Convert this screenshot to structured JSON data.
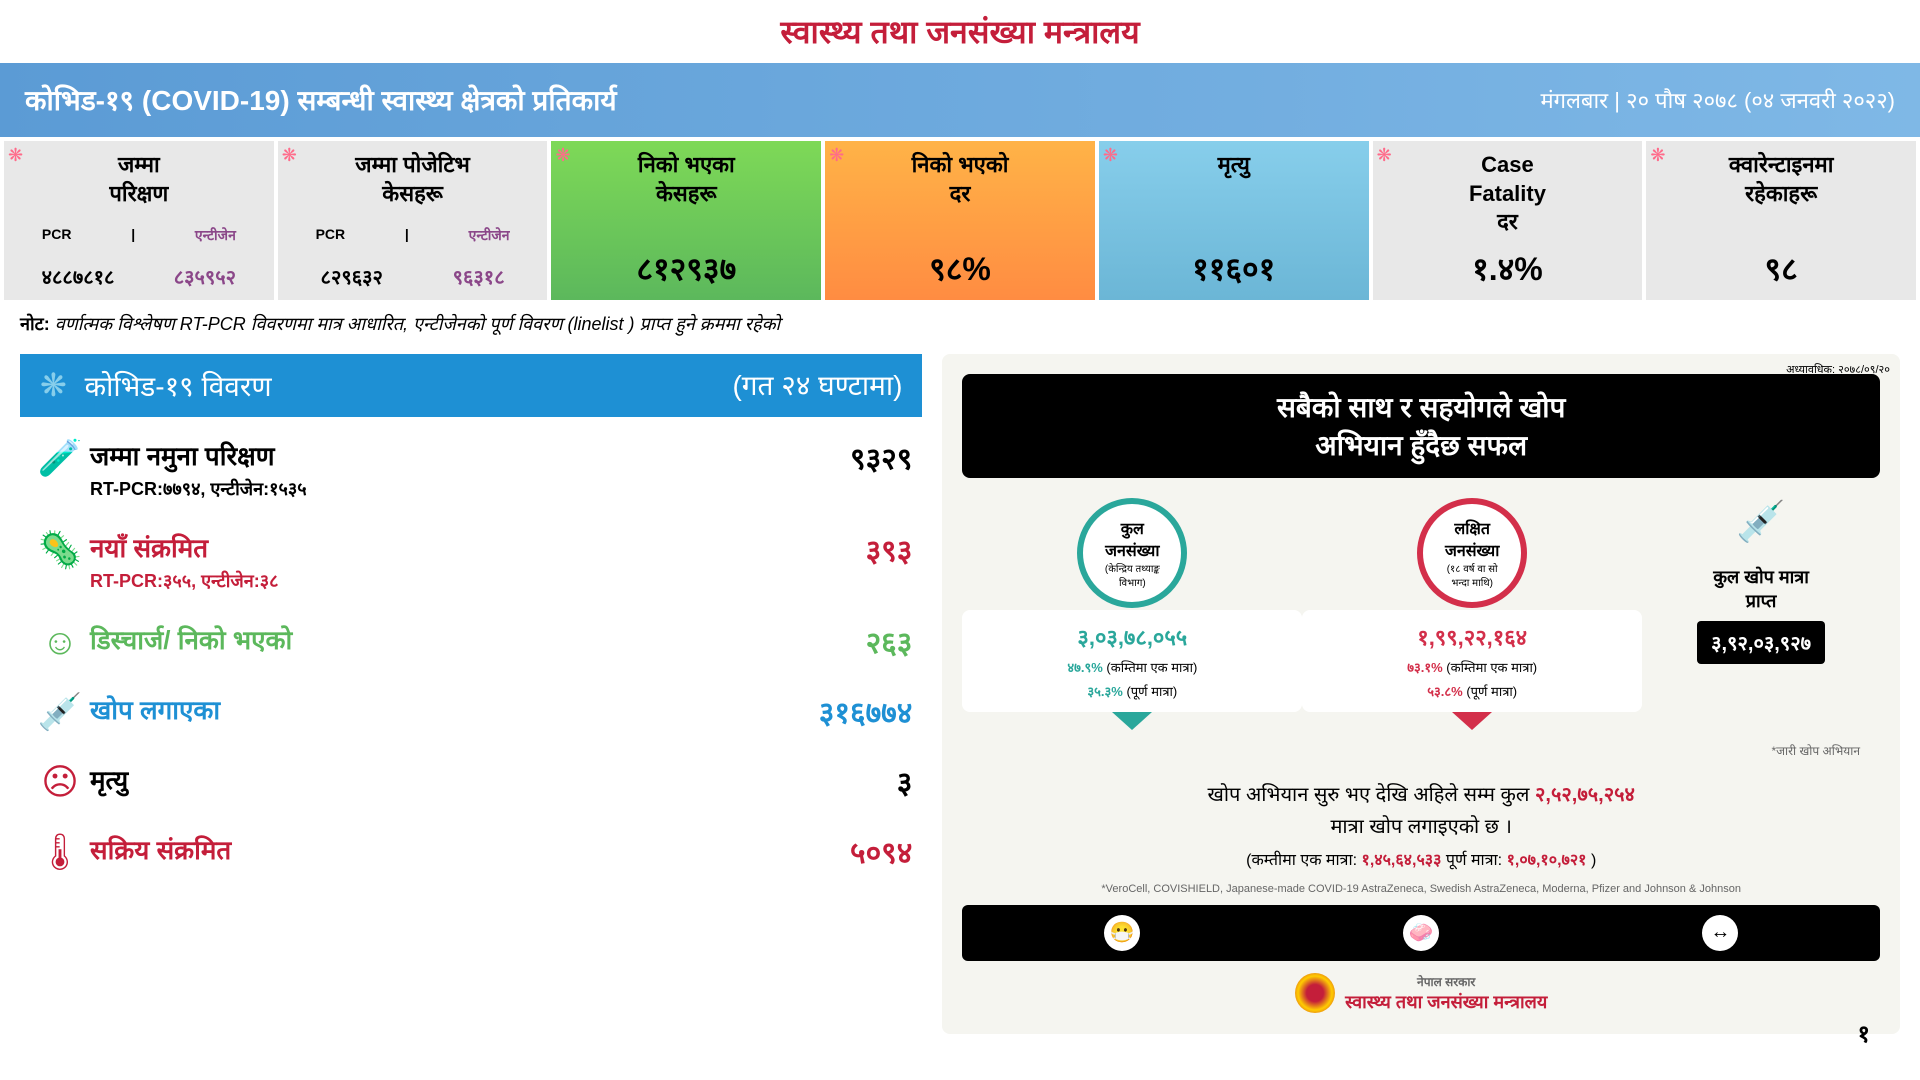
{
  "page": {
    "title": "स्वास्थ्य तथा जनसंख्या मन्त्रालय",
    "pageNumber": "१"
  },
  "header": {
    "left": "कोभिड-१९ (COVID-19) सम्बन्धी स्वास्थ्य क्षेत्रको प्रतिकार्य",
    "right": "मंगलबार | २० पौष २०७८ (०४ जनवरी २०२२)"
  },
  "stats": [
    {
      "title": "जम्मा\nपरिक्षण",
      "bg": "#e8e8e8",
      "dual": true,
      "sub1": "PCR",
      "sub2": "एन्टीजेन",
      "val1": "४८८७८१८",
      "val2": "८३५९५२",
      "val1_color": "#000",
      "val2_color": "#8b4789"
    },
    {
      "title": "जम्मा पोजेटिभ\nकेसहरू",
      "bg": "#e8e8e8",
      "dual": true,
      "sub1": "PCR",
      "sub2": "एन्टीजेन",
      "val1": "८२९६३२",
      "val2": "९६३१८",
      "val1_color": "#000",
      "val2_color": "#8b4789"
    },
    {
      "title": "निको भएका\nकेसहरू",
      "bg": "linear-gradient(to bottom, #7ed957, #5cb85c)",
      "big": "८१२९३७"
    },
    {
      "title": "निको भएको\nदर",
      "bg": "linear-gradient(to bottom, #ffb347, #ff8c42)",
      "big": "९८%"
    },
    {
      "title": "मृत्यु",
      "bg": "linear-gradient(to bottom, #87ceeb, #6bb6d6)",
      "big": "११६०१"
    },
    {
      "title": "Case\nFatality\nदर",
      "bg": "#e8e8e8",
      "big": "१.४%"
    },
    {
      "title": "क्वारेन्टाइनमा\nरहेकाहरू",
      "bg": "#e8e8e8",
      "big": "९८"
    }
  ],
  "note": {
    "prefix": "नोट:",
    "text": "वर्णात्मक विश्लेषण RT-PCR विवरणमा मात्र आधारित, एन्टीजेनको पूर्ण विवरण (linelist ) प्राप्त हुने क्रममा रहेको"
  },
  "section": {
    "title": "कोभिड-१९ विवरण",
    "subtitle": "(गत २४ घण्टामा)"
  },
  "metrics": [
    {
      "icon": "🧪",
      "iconColor": "#1e90d4",
      "label": "जम्मा नमुना परिक्षण",
      "labelColor": "#000",
      "value": "९३२९",
      "valueColor": "#000",
      "sub": "RT-PCR:७७९४, एन्टीजेन:१५३५",
      "subColor": "#000"
    },
    {
      "icon": "🦠",
      "iconColor": "#c41e3a",
      "label": "नयाँ संक्रमित",
      "labelColor": "#c41e3a",
      "value": "३९३",
      "valueColor": "#c41e3a",
      "sub": "RT-PCR:३५५, एन्टीजेन:३८",
      "subColor": "#c41e3a"
    },
    {
      "icon": "☺",
      "iconColor": "#5cb85c",
      "label": "डिस्चार्ज/ निको भएको",
      "labelColor": "#5cb85c",
      "value": "२६३",
      "valueColor": "#5cb85c"
    },
    {
      "icon": "💉",
      "iconColor": "#1e90d4",
      "label": "खोप लगाएका",
      "labelColor": "#1e90d4",
      "value": "३१६७७४",
      "valueColor": "#1e90d4"
    },
    {
      "icon": "☹",
      "iconColor": "#c41e3a",
      "label": "मृत्यु",
      "labelColor": "#000",
      "value": "३",
      "valueColor": "#000"
    },
    {
      "icon": "🌡",
      "iconColor": "#c41e3a",
      "label": "सक्रिय संक्रमित",
      "labelColor": "#c41e3a",
      "value": "५०९४",
      "valueColor": "#c41e3a"
    }
  ],
  "vaccine": {
    "title": "सबैको साथ र सहयोगले खोप\nअभियान हुँदैछ सफल",
    "note": "अध्यावधिक: २०७८/०९/२०",
    "circles": [
      {
        "ring": "#2aa79b",
        "label": "कुल\nजनसंख्या",
        "sub": "(केन्द्रिय तथ्याङ्क\nविभाग)",
        "number": "३,०३,७८,०५५",
        "pct1": "४७.९%",
        "pct1_text": "(कम्तिमा एक मात्रा)",
        "pct2": "३५.३%",
        "pct2_text": "(पूर्ण मात्रा)",
        "pctColor": "#2aa79b"
      },
      {
        "ring": "#d32f4a",
        "label": "लक्षित\nजनसंख्या",
        "sub": "(१८ वर्ष वा सो\nभन्दा माथि)",
        "number": "१,९९,२२,१६४",
        "pct1": "७३.१%",
        "pct1_text": "(कम्तिमा एक मात्रा)",
        "pct2": "५३.८%",
        "pct2_text": "(पूर्ण मात्रा)",
        "pctColor": "#d32f4a"
      }
    ],
    "dose": {
      "icon": "💉",
      "label": "कुल खोप मात्रा\nप्राप्त",
      "number": "३,९२,०३,९२७"
    },
    "jaari": "*जारी खोप अभियान",
    "summary1": "खोप अभियान सुरु भए देखि अहिले सम्म कुल",
    "summary1_red": "२,५२,७५,२५४",
    "summary2": "मात्रा खोप लगाइएको छ ।",
    "summary3_a": "(कम्तीमा एक मात्रा:",
    "summary3_b": "१,४५,६४,५३३",
    "summary3_c": " पूर्ण मात्रा:",
    "summary3_d": "१,०७,१०,७२१",
    "summary3_e": ")",
    "footnote": "*VeroCell, COVISHIELD, Japanese-made COVID-19 AstraZeneca, Swedish AstraZeneca, Moderna, Pfizer and Johnson & Johnson",
    "ministry_line1": "नेपाल सरकार",
    "ministry_line2": "स्वास्थ्य तथा जनसंख्या मन्त्रालय"
  }
}
